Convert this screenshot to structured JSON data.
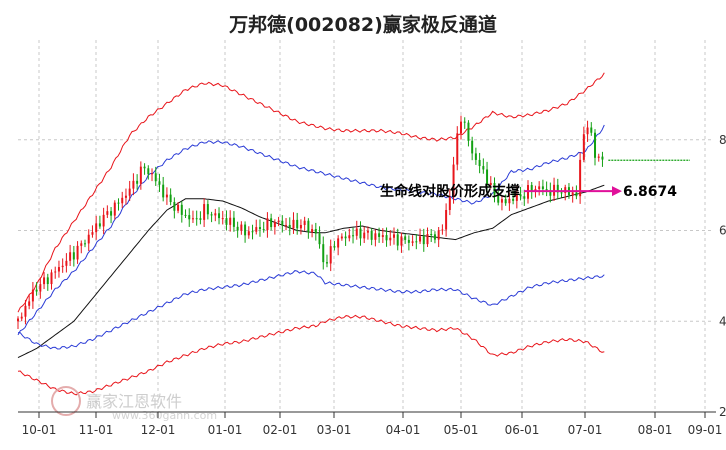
{
  "chart_data": {
    "type": "candlestick-channel",
    "title": "万邦德(002082)赢家极反通道",
    "x_ticks": [
      "10-01",
      "11-01",
      "12-01",
      "01-01",
      "02-01",
      "03-01",
      "04-01",
      "05-01",
      "06-01",
      "07-01",
      "08-01",
      "09-01"
    ],
    "y_ticks": [
      2,
      4,
      6,
      8
    ],
    "ylim": [
      2,
      10.2
    ],
    "annotation": {
      "text": "生命线对股价形成支撑",
      "value": "6.8674"
    },
    "last_price_level": 7.55,
    "watermark": {
      "text": "赢家江恩软件",
      "url": "www.360gann.com"
    },
    "colors": {
      "up": "#e8151b",
      "down": "#12a012",
      "outer_band": "#e8151b",
      "mid_band": "#2a3bd6",
      "life_line": "#111111",
      "arrow": "#e0109a"
    },
    "bands": {
      "x": [
        0,
        8,
        16,
        24,
        32,
        40,
        48,
        56,
        64,
        72,
        80,
        88,
        96,
        104,
        112,
        120,
        128,
        132,
        140,
        148,
        156,
        164,
        172,
        180,
        188,
        196,
        204,
        212,
        220,
        228,
        236,
        244,
        252
      ],
      "outer_upper": [
        4.2,
        4.8,
        5.6,
        6.2,
        6.8,
        7.4,
        8.1,
        8.5,
        8.8,
        9.1,
        9.25,
        9.2,
        9.0,
        8.8,
        8.6,
        8.4,
        8.3,
        8.25,
        8.2,
        8.2,
        8.2,
        8.15,
        8.05,
        8.0,
        8.05,
        8.3,
        8.6,
        8.5,
        8.55,
        8.65,
        8.8,
        9.1,
        9.45
      ],
      "mid_upper": [
        3.7,
        4.2,
        4.7,
        5.1,
        5.6,
        6.1,
        6.7,
        7.2,
        7.55,
        7.8,
        7.95,
        7.95,
        7.85,
        7.7,
        7.55,
        7.4,
        7.3,
        7.25,
        7.15,
        7.05,
        6.95,
        6.9,
        6.85,
        6.8,
        6.7,
        6.6,
        6.8,
        7.3,
        7.35,
        7.5,
        7.6,
        7.75,
        8.3
      ],
      "life": [
        3.2,
        3.4,
        3.7,
        4.0,
        4.5,
        5.0,
        5.5,
        6.0,
        6.45,
        6.7,
        6.7,
        6.65,
        6.5,
        6.3,
        6.15,
        6.0,
        5.95,
        5.95,
        6.05,
        6.1,
        6.0,
        5.95,
        5.9,
        5.85,
        5.8,
        5.95,
        6.05,
        6.35,
        6.5,
        6.65,
        6.75,
        6.85,
        7.0
      ],
      "mid_lower": [
        3.75,
        3.5,
        3.4,
        3.45,
        3.6,
        3.8,
        4.0,
        4.2,
        4.4,
        4.6,
        4.7,
        4.75,
        4.8,
        4.9,
        5.0,
        5.1,
        5.05,
        4.85,
        4.8,
        4.75,
        4.7,
        4.65,
        4.65,
        4.7,
        4.7,
        4.5,
        4.35,
        4.55,
        4.75,
        4.85,
        4.9,
        4.95,
        5.0
      ],
      "outer_lower": [
        2.9,
        2.7,
        2.5,
        2.4,
        2.45,
        2.6,
        2.75,
        2.9,
        3.1,
        3.25,
        3.4,
        3.5,
        3.55,
        3.65,
        3.75,
        3.85,
        3.9,
        4.0,
        4.1,
        4.1,
        4.0,
        3.9,
        3.85,
        3.8,
        3.85,
        3.6,
        3.25,
        3.3,
        3.45,
        3.55,
        3.6,
        3.55,
        3.3
      ]
    },
    "price_path": {
      "x": [
        0,
        4,
        8,
        12,
        16,
        20,
        24,
        30,
        36,
        42,
        48,
        54,
        58,
        64,
        70,
        76,
        80,
        86,
        92,
        98,
        104,
        110,
        116,
        122,
        128,
        132,
        136,
        140,
        146,
        152,
        158,
        164,
        170,
        176,
        182,
        186,
        190,
        196,
        200,
        204,
        208,
        212,
        216,
        220,
        224,
        228,
        232,
        236,
        240,
        244,
        248,
        252
      ],
      "y": [
        4.0,
        4.4,
        4.75,
        4.9,
        5.1,
        5.3,
        5.5,
        5.85,
        6.25,
        6.55,
        6.9,
        7.4,
        7.2,
        6.7,
        6.4,
        6.2,
        6.45,
        6.3,
        6.15,
        5.95,
        6.05,
        6.2,
        6.1,
        6.15,
        5.95,
        5.2,
        5.75,
        5.85,
        5.95,
        5.9,
        5.85,
        5.8,
        5.75,
        5.85,
        5.95,
        6.9,
        8.6,
        7.6,
        7.3,
        6.85,
        6.6,
        6.7,
        6.75,
        6.9,
        6.95,
        6.85,
        6.9,
        6.85,
        6.8,
        8.5,
        7.7,
        7.5
      ]
    },
    "x_range": [
      0,
      300
    ]
  }
}
